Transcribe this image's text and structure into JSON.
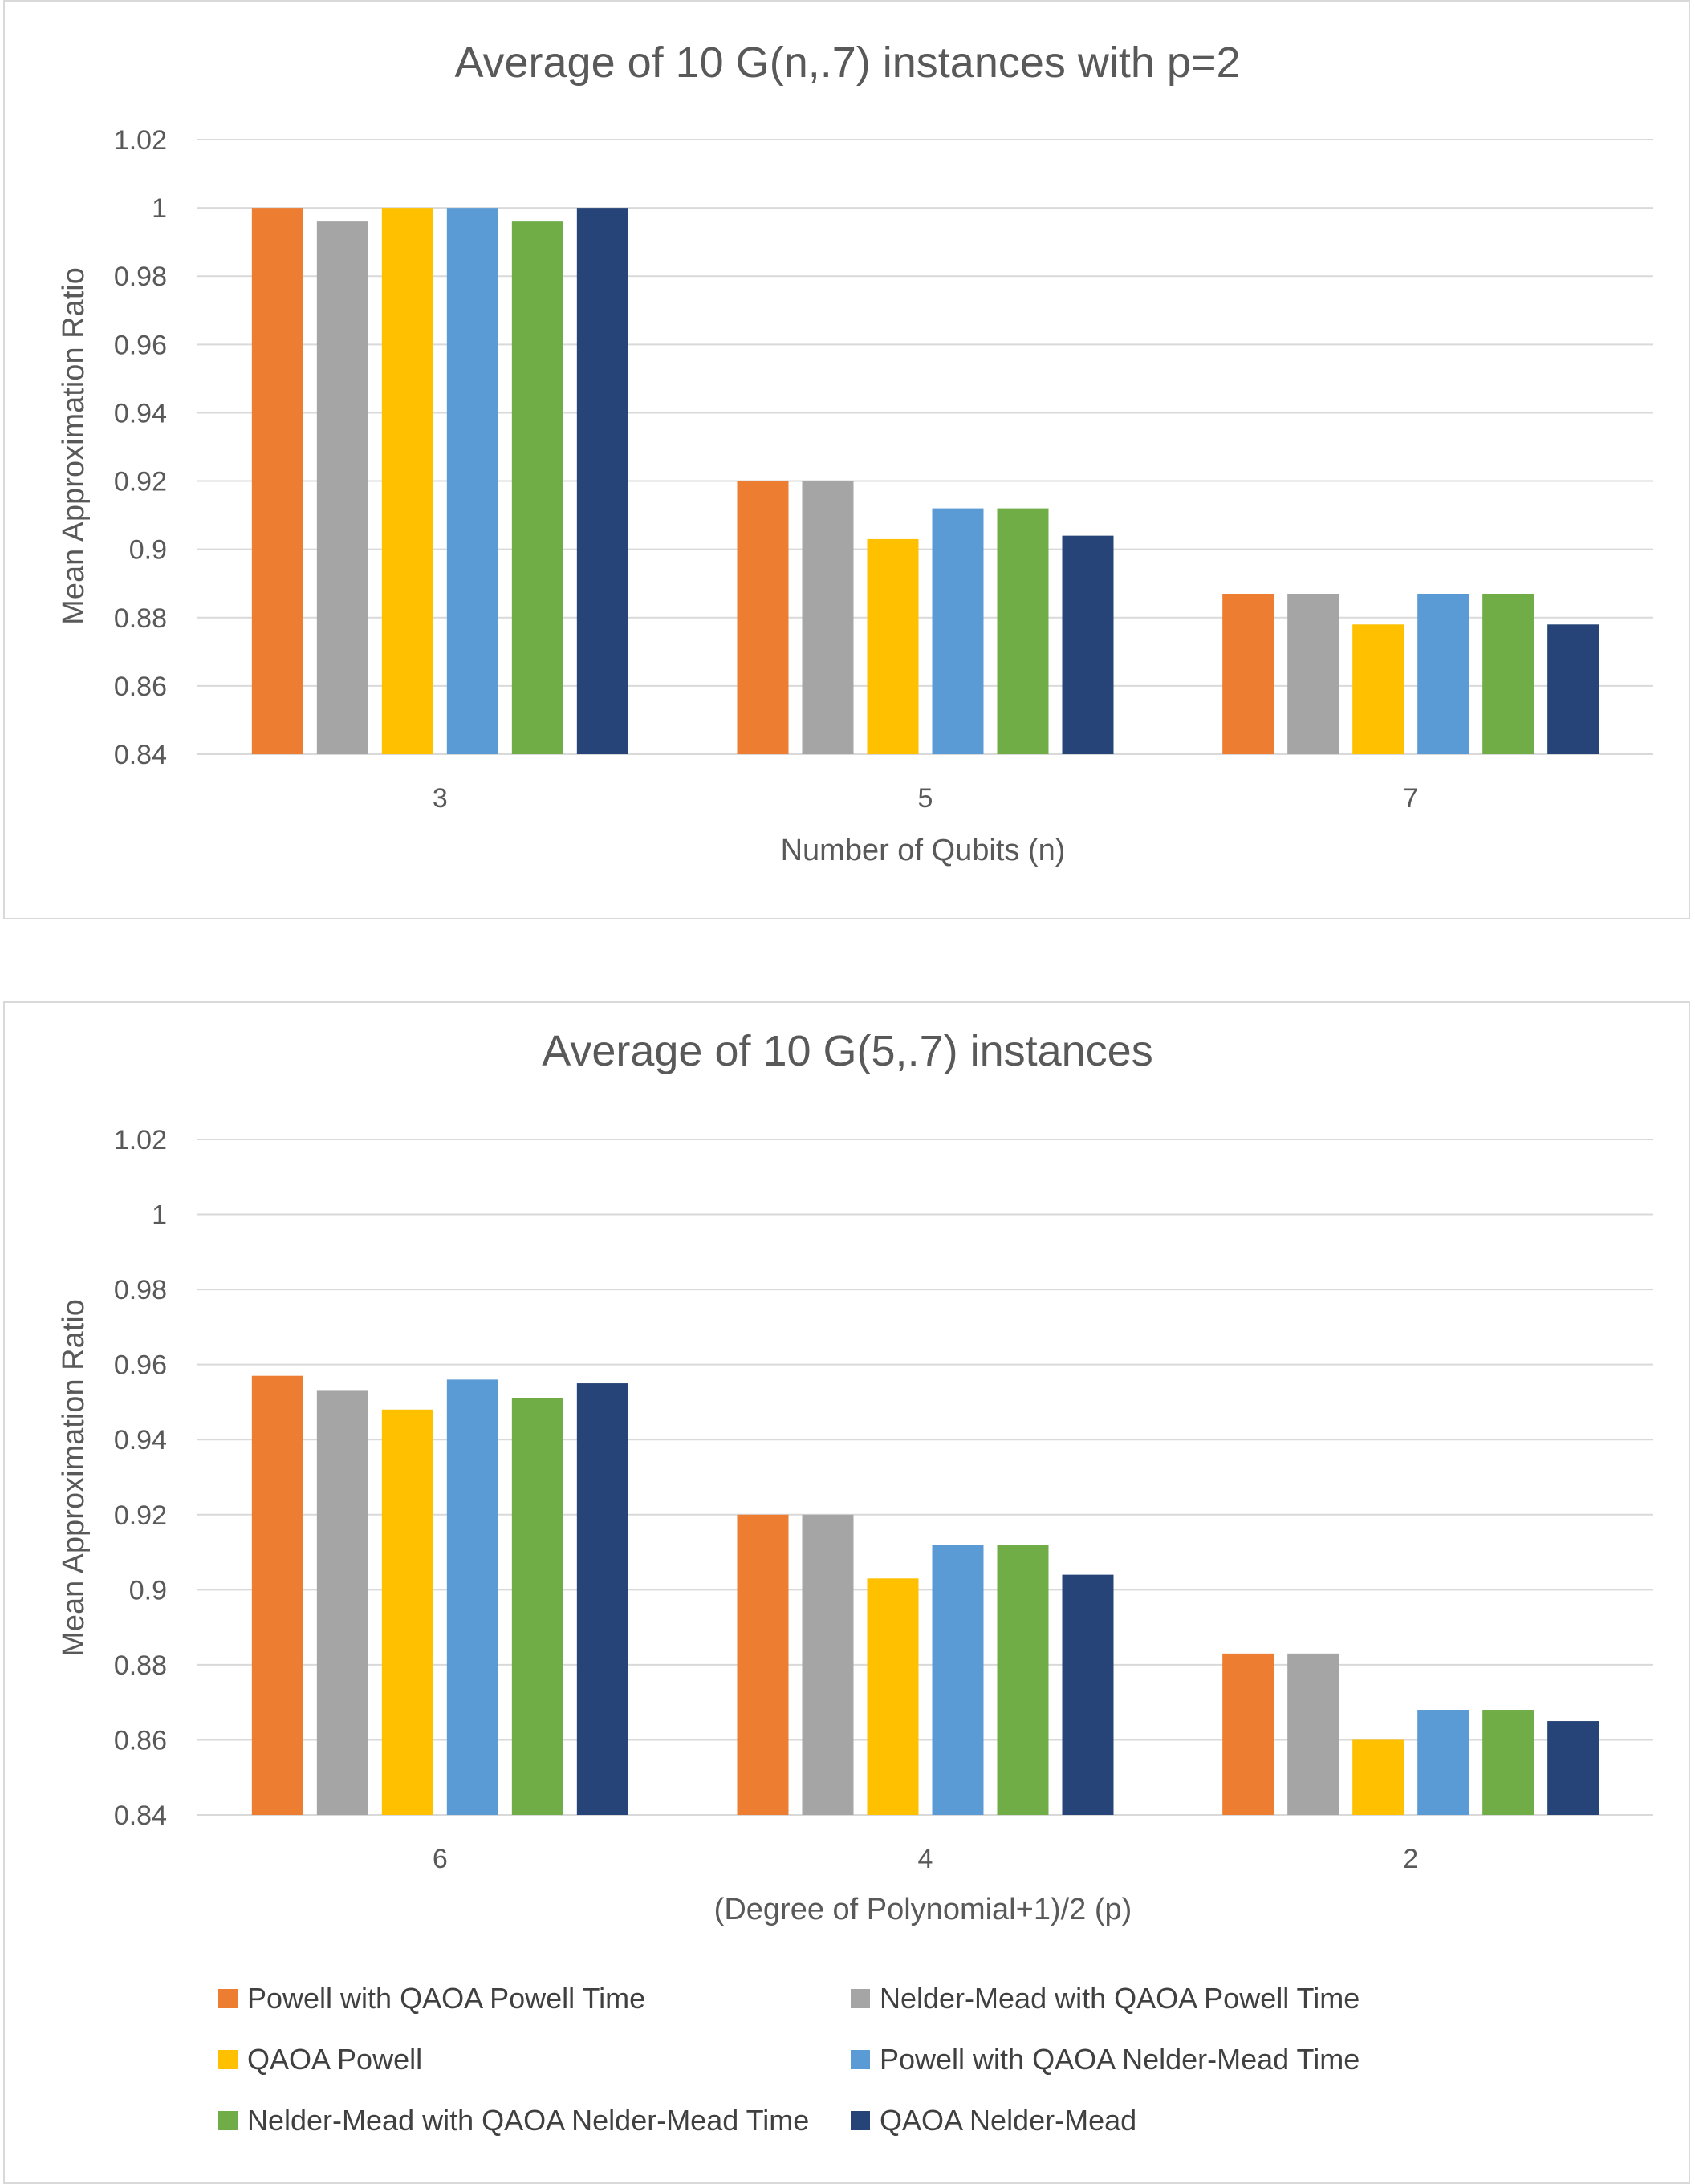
{
  "colors": {
    "axis_text": "#595959",
    "grid": "#d9d9d9"
  },
  "series_meta": [
    {
      "name": "Powell with QAOA Powell Time",
      "color": "#ed7d31"
    },
    {
      "name": "Nelder-Mead with QAOA Powell Time",
      "color": "#a5a5a5"
    },
    {
      "name": "QAOA Powell",
      "color": "#ffc000"
    },
    {
      "name": "Powell with QAOA Nelder-Mead Time",
      "color": "#5b9bd5"
    },
    {
      "name": "Nelder-Mead with QAOA Nelder-Mead Time",
      "color": "#70ad47"
    },
    {
      "name": "QAOA Nelder-Mead",
      "color": "#264478"
    }
  ],
  "chart_data": [
    {
      "type": "bar",
      "title": "Average of 10 G(n,.7) instances with p=2",
      "xlabel": "Number of Qubits (n)",
      "ylabel": "Mean Approximation Ratio",
      "ylim": [
        0.84,
        1.02
      ],
      "yticks": [
        "0.84",
        "0.86",
        "0.88",
        "0.9",
        "0.92",
        "0.94",
        "0.96",
        "0.98",
        "1",
        "1.02"
      ],
      "categories": [
        "3",
        "5",
        "7"
      ],
      "series": [
        {
          "name": "Powell with QAOA Powell Time",
          "values": [
            1.0,
            0.92,
            0.887
          ]
        },
        {
          "name": "Nelder-Mead with QAOA Powell Time",
          "values": [
            0.996,
            0.92,
            0.887
          ]
        },
        {
          "name": "QAOA Powell",
          "values": [
            1.0,
            0.903,
            0.878
          ]
        },
        {
          "name": "Powell with QAOA Nelder-Mead Time",
          "values": [
            1.0,
            0.912,
            0.887
          ]
        },
        {
          "name": "Nelder-Mead with QAOA Nelder-Mead Time",
          "values": [
            0.996,
            0.912,
            0.887
          ]
        },
        {
          "name": "QAOA Nelder-Mead",
          "values": [
            1.0,
            0.904,
            0.878
          ]
        }
      ]
    },
    {
      "type": "bar",
      "title": "Average of 10 G(5,.7) instances",
      "xlabel": "(Degree of Polynomial+1)/2 (p)",
      "ylabel": "Mean Approximation Ratio",
      "ylim": [
        0.84,
        1.02
      ],
      "yticks": [
        "0.84",
        "0.86",
        "0.88",
        "0.9",
        "0.92",
        "0.94",
        "0.96",
        "0.98",
        "1",
        "1.02"
      ],
      "categories": [
        "6",
        "4",
        "2"
      ],
      "series": [
        {
          "name": "Powell with QAOA Powell Time",
          "values": [
            0.957,
            0.92,
            0.883
          ]
        },
        {
          "name": "Nelder-Mead with QAOA Powell Time",
          "values": [
            0.953,
            0.92,
            0.883
          ]
        },
        {
          "name": "QAOA Powell",
          "values": [
            0.948,
            0.903,
            0.86
          ]
        },
        {
          "name": "Powell with QAOA Nelder-Mead Time",
          "values": [
            0.956,
            0.912,
            0.868
          ]
        },
        {
          "name": "Nelder-Mead with QAOA Nelder-Mead Time",
          "values": [
            0.951,
            0.912,
            0.868
          ]
        },
        {
          "name": "QAOA Nelder-Mead",
          "values": [
            0.955,
            0.904,
            0.865
          ]
        }
      ],
      "legend_position": "bottom"
    }
  ]
}
